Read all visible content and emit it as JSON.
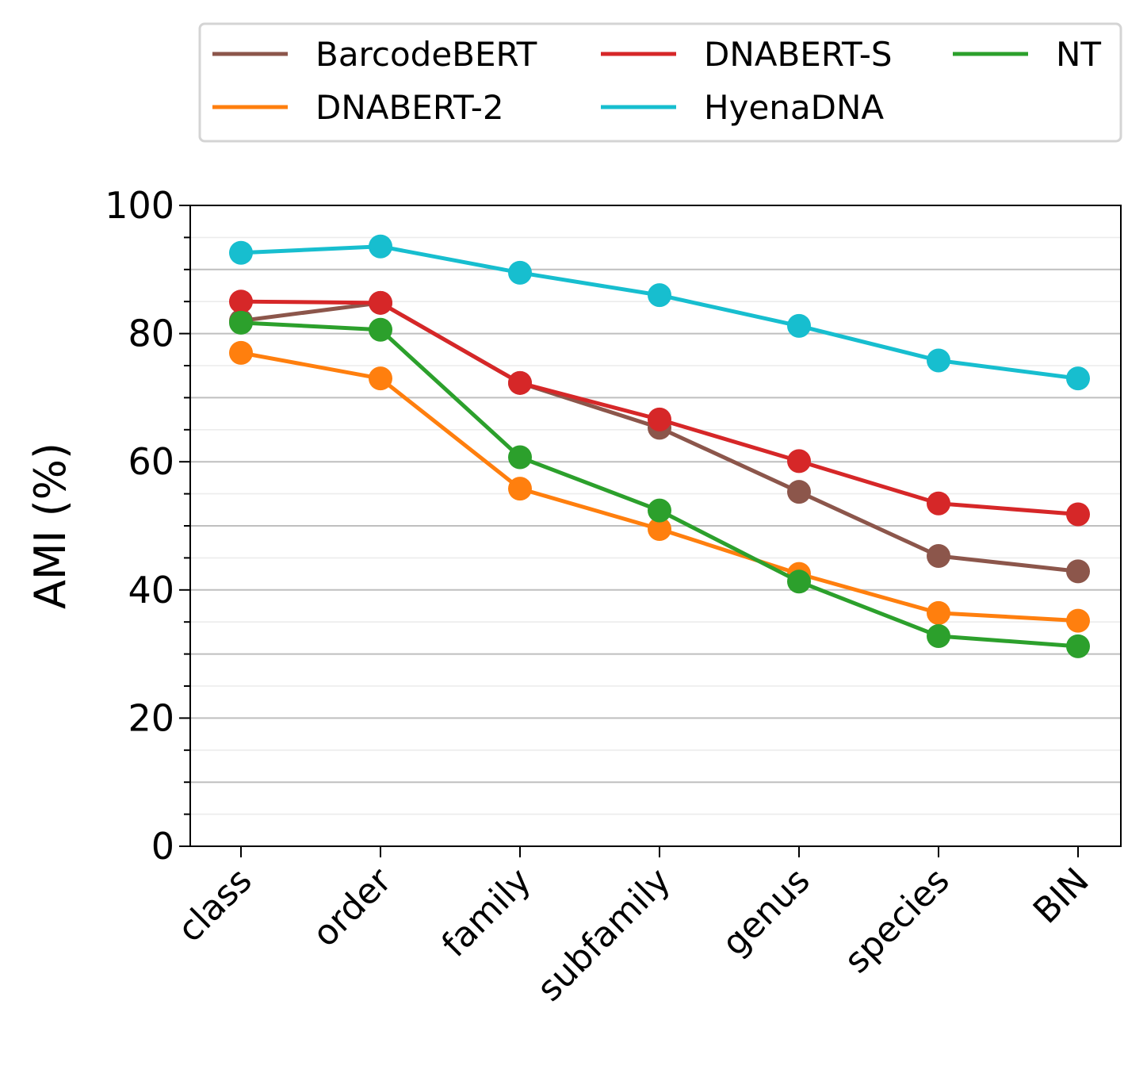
{
  "chart_data": {
    "type": "line",
    "title": "",
    "xlabel": "",
    "ylabel": "AMI (%)",
    "ylim": [
      0,
      100
    ],
    "yticks": [
      0,
      20,
      40,
      60,
      80,
      100
    ],
    "y_minor_step": 5,
    "grid": "horizontal major and minor",
    "legend_position": "top, outside plot, 3 columns",
    "markers": "circle",
    "categories": [
      "class",
      "order",
      "family",
      "subfamily",
      "genus",
      "species",
      "BIN"
    ],
    "series": [
      {
        "name": "BarcodeBERT",
        "color": "#8c564b",
        "values": [
          82.0,
          84.8,
          72.3,
          65.3,
          55.3,
          45.3,
          42.9
        ]
      },
      {
        "name": "DNABERT-2",
        "color": "#ff7f0e",
        "values": [
          77.0,
          73.0,
          55.8,
          49.5,
          42.5,
          36.4,
          35.2
        ]
      },
      {
        "name": "DNABERT-S",
        "color": "#d62728",
        "values": [
          85.0,
          84.8,
          72.3,
          66.6,
          60.1,
          53.5,
          51.8
        ]
      },
      {
        "name": "HyenaDNA",
        "color": "#17becf",
        "values": [
          92.6,
          93.6,
          89.5,
          86.0,
          81.2,
          75.8,
          73.0
        ]
      },
      {
        "name": "NT",
        "color": "#2ca02c",
        "values": [
          81.7,
          80.6,
          60.7,
          52.4,
          41.3,
          32.8,
          31.2
        ]
      }
    ]
  }
}
